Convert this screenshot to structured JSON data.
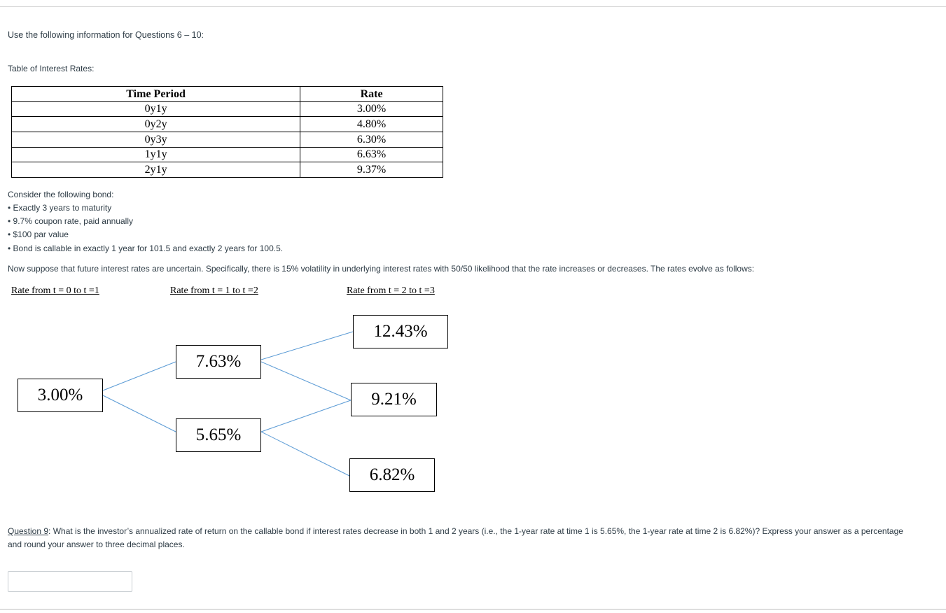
{
  "intro": "Use the following information for Questions 6 – 10:",
  "table_label": "Table of Interest Rates:",
  "rates_table": {
    "headers": [
      "Time Period",
      "Rate"
    ],
    "rows": [
      [
        "0y1y",
        "3.00%"
      ],
      [
        "0y2y",
        "4.80%"
      ],
      [
        "0y3y",
        "6.30%"
      ],
      [
        "1y1y",
        "6.63%"
      ],
      [
        "2y1y",
        "9.37%"
      ]
    ]
  },
  "bond": {
    "intro": "Consider the following bond:",
    "bullets": [
      "• Exactly 3 years to maturity",
      "• 9.7% coupon rate, paid annually",
      "• $100 par value",
      "• Bond is callable in exactly 1 year for 101.5 and exactly 2 years for 100.5."
    ]
  },
  "scenario": "Now suppose that future interest rates are uncertain. Specifically, there is 15% volatility in underlying interest rates with 50/50 likelihood that the rate increases or decreases. The rates evolve as follows:",
  "tree": {
    "periods": [
      "Rate from t = 0 to t =1",
      "Rate from t = 1 to t =2",
      "Rate from t = 2 to t =3"
    ],
    "t0": "3.00%",
    "t1": [
      "7.63%",
      "5.65%"
    ],
    "t2": [
      "12.43%",
      "9.21%",
      "6.82%"
    ],
    "line_color": "#5b9bd5"
  },
  "question": {
    "label": "Question 9",
    "text": ": What is the investor’s annualized rate of return on the callable bond if interest rates decrease in both 1 and 2 years (i.e., the 1-year rate at time 1 is 5.65%, the 1-year rate at time 2 is 6.82%)? Express your answer as a percentage and round your answer to three decimal places."
  },
  "answer": {
    "value": ""
  }
}
